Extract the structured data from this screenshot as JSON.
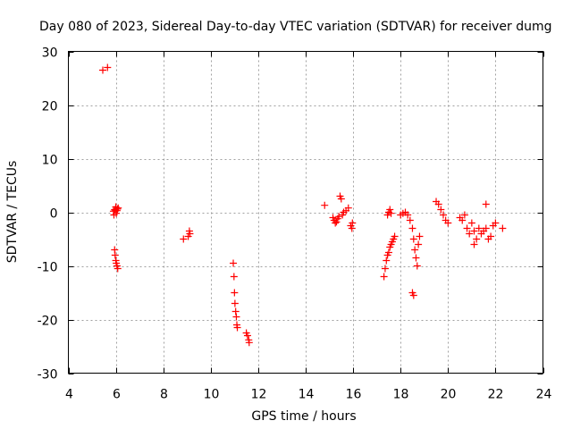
{
  "chart_data": {
    "type": "scatter",
    "title": "Day 080 of 2023, Sidereal Day-to-day VTEC variation (SDTVAR) for receiver dumg",
    "xlabel": "GPS time / hours",
    "ylabel": "SDTVAR / TECUs",
    "xlim": [
      4,
      24
    ],
    "ylim": [
      -30,
      30
    ],
    "x_ticks": [
      "4",
      "6",
      "8",
      "10",
      "12",
      "14",
      "16",
      "18",
      "20",
      "22",
      "24"
    ],
    "y_ticks": [
      "-30",
      "-20",
      "-10",
      "0",
      "10",
      "20",
      "30"
    ],
    "x_tick_values": [
      4,
      6,
      8,
      10,
      12,
      14,
      16,
      18,
      20,
      22,
      24
    ],
    "y_tick_values": [
      -30,
      -20,
      -10,
      0,
      10,
      20,
      30
    ],
    "grid": true,
    "marker": "+",
    "colors": {
      "points": "#ff0000",
      "axes": "#000000",
      "grid": "#a0a0a0"
    },
    "series": [
      {
        "name": "SDTVAR",
        "x": [
          5.45,
          5.65,
          5.9,
          5.95,
          6.0,
          6.05,
          6.1,
          5.92,
          6.02,
          5.97,
          6.07,
          5.95,
          5.97,
          6.0,
          6.02,
          6.05,
          6.08,
          8.85,
          9.05,
          9.1,
          9.12,
          10.95,
          10.98,
          11.0,
          11.02,
          11.05,
          11.08,
          11.1,
          11.12,
          11.5,
          11.55,
          11.6,
          11.62,
          14.8,
          15.15,
          15.2,
          15.25,
          15.3,
          15.35,
          15.4,
          15.45,
          15.5,
          15.55,
          15.6,
          15.7,
          15.8,
          15.9,
          15.95,
          15.97,
          17.3,
          17.35,
          17.4,
          17.45,
          17.5,
          17.55,
          17.6,
          17.65,
          17.7,
          17.75,
          17.45,
          17.5,
          17.55,
          17.6,
          18.0,
          18.1,
          18.2,
          18.3,
          18.4,
          18.5,
          18.55,
          18.6,
          18.65,
          18.7,
          18.75,
          18.8,
          18.5,
          18.55,
          19.5,
          19.6,
          19.7,
          19.8,
          19.9,
          20.0,
          20.5,
          20.6,
          20.7,
          20.8,
          20.9,
          21.0,
          21.1,
          21.2,
          21.3,
          21.4,
          21.5,
          21.6,
          21.7,
          21.8,
          21.9,
          22.0,
          22.3,
          21.6,
          21.1
        ],
        "y": [
          26.5,
          27.0,
          0.2,
          0.5,
          1.0,
          0.3,
          0.8,
          -0.5,
          -0.2,
          0.4,
          0.6,
          -7.0,
          -8.0,
          -9.0,
          -9.5,
          -10.0,
          -10.5,
          -5.0,
          -4.5,
          -3.5,
          -4.0,
          -9.5,
          -12.0,
          -15.0,
          -17.0,
          -18.5,
          -19.5,
          -21.0,
          -21.5,
          -22.5,
          -23.0,
          -23.8,
          -24.3,
          1.3,
          -1.0,
          -1.5,
          -2.0,
          -1.8,
          -1.2,
          -0.8,
          3.0,
          2.5,
          -0.5,
          0.0,
          0.3,
          0.8,
          -2.5,
          -3.0,
          -2.0,
          -12.0,
          -10.5,
          -9.0,
          -8.0,
          -7.5,
          -6.5,
          -6.0,
          -5.5,
          -5.0,
          -4.5,
          -0.5,
          0.0,
          0.5,
          -0.2,
          -0.5,
          -0.2,
          0.0,
          -0.5,
          -1.5,
          -3.0,
          -5.0,
          -7.0,
          -8.5,
          -10.0,
          -6.0,
          -4.5,
          -15.0,
          -15.5,
          2.0,
          1.5,
          0.5,
          -0.5,
          -1.5,
          -2.0,
          -1.0,
          -1.5,
          -0.5,
          -3.0,
          -4.0,
          -2.0,
          -3.5,
          -5.0,
          -3.0,
          -4.0,
          -3.5,
          -3.0,
          -5.0,
          -4.5,
          -2.5,
          -2.0,
          -3.0,
          1.5,
          -6.0
        ]
      }
    ]
  }
}
